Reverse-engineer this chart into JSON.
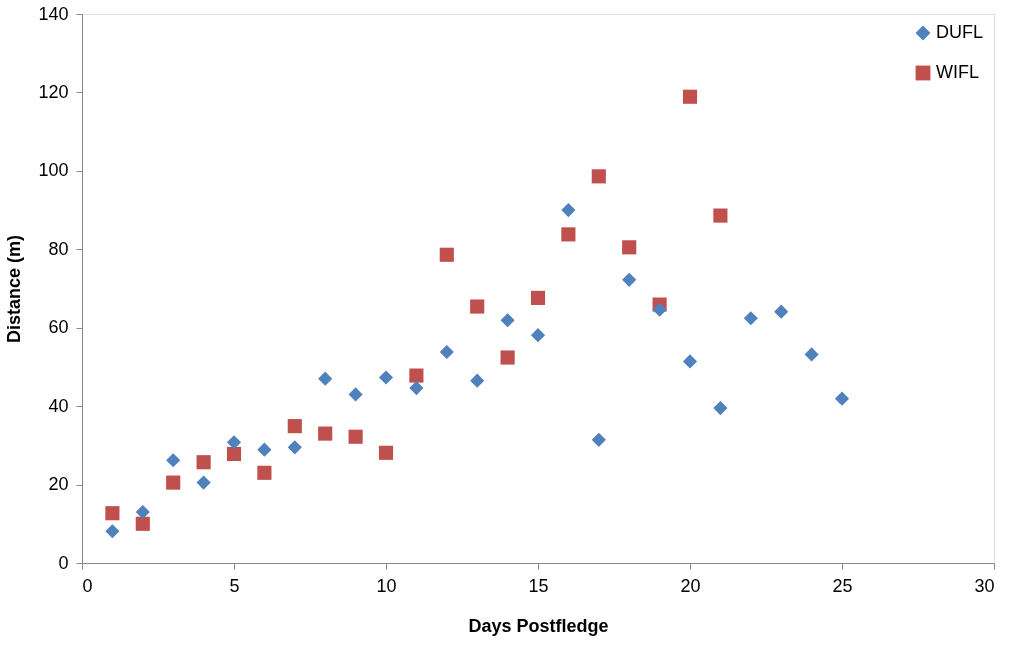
{
  "chart_data": {
    "type": "scatter",
    "xlabel": "Days Postfledge",
    "ylabel": "Distance (m)",
    "xlim": [
      0,
      30
    ],
    "xticks": [
      0,
      5,
      10,
      15,
      20,
      25,
      30
    ],
    "ylim": [
      0,
      140
    ],
    "yticks": [
      0,
      20,
      40,
      60,
      80,
      100,
      120,
      140
    ],
    "grid": false,
    "legend": "top right",
    "series": [
      {
        "name": "DUFL",
        "color": "#4f81bd",
        "marker": "diamond",
        "x": [
          1,
          2,
          3,
          4,
          5,
          6,
          7,
          8,
          9,
          10,
          11,
          12,
          13,
          14,
          15,
          16,
          17,
          18,
          19,
          20,
          21,
          22,
          23,
          24,
          25
        ],
        "values": [
          8.1,
          13.0,
          26.2,
          20.5,
          30.8,
          28.9,
          29.5,
          47.0,
          43.0,
          47.3,
          44.6,
          53.8,
          46.5,
          61.9,
          58.1,
          90.0,
          31.4,
          72.2,
          64.6,
          51.4,
          39.5,
          62.4,
          64.1,
          53.2,
          41.9
        ]
      },
      {
        "name": "WIFL",
        "color": "#c0504d",
        "marker": "square",
        "x": [
          1,
          2,
          3,
          4,
          5,
          6,
          7,
          8,
          9,
          10,
          11,
          12,
          13,
          14,
          15,
          16,
          17,
          18,
          19,
          20,
          21
        ],
        "values": [
          12.7,
          10.0,
          20.5,
          25.7,
          27.8,
          23.0,
          34.9,
          33.0,
          32.2,
          28.1,
          47.8,
          78.6,
          65.4,
          52.4,
          67.6,
          83.8,
          98.6,
          80.5,
          65.9,
          118.9,
          88.6
        ]
      }
    ]
  }
}
